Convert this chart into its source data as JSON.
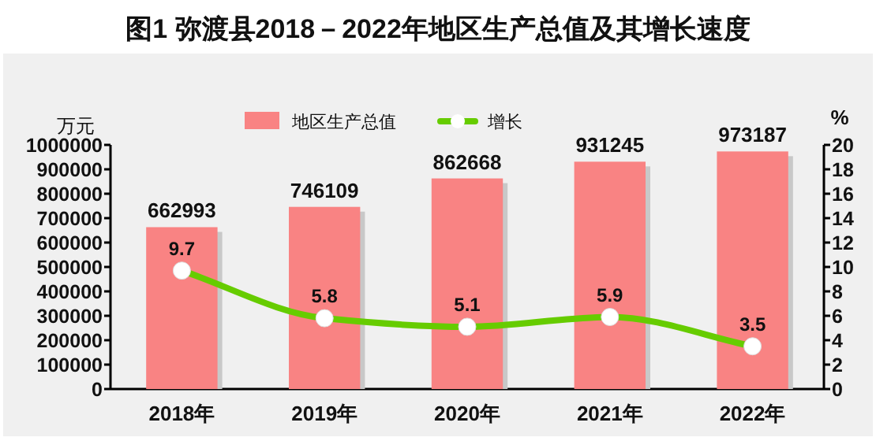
{
  "chart_data": {
    "type": "bar",
    "title": "图1 弥渡县2018－2022年地区生产总值及其增长速度",
    "ylabel": "万元",
    "y2label": "%",
    "categories": [
      "2018年",
      "2019年",
      "2020年",
      "2021年",
      "2022年"
    ],
    "series": [
      {
        "name": "地区生产总值",
        "color": "#f98383",
        "values": [
          662993,
          746109,
          862668,
          931245,
          973187
        ]
      },
      {
        "name": "增长",
        "type": "line",
        "axis": "y2",
        "color": "#66cc00",
        "marker": "circle",
        "values": [
          9.7,
          5.8,
          5.1,
          5.9,
          3.5
        ]
      }
    ],
    "ylim": [
      0,
      1000000
    ],
    "yticks": [
      0,
      100000,
      200000,
      300000,
      400000,
      500000,
      600000,
      700000,
      800000,
      900000,
      1000000
    ],
    "y2lim": [
      0,
      20
    ],
    "y2ticks": [
      0,
      2,
      4,
      6,
      8,
      10,
      12,
      14,
      16,
      18,
      20
    ],
    "data_labels": true,
    "legend": "top",
    "grid": false
  }
}
